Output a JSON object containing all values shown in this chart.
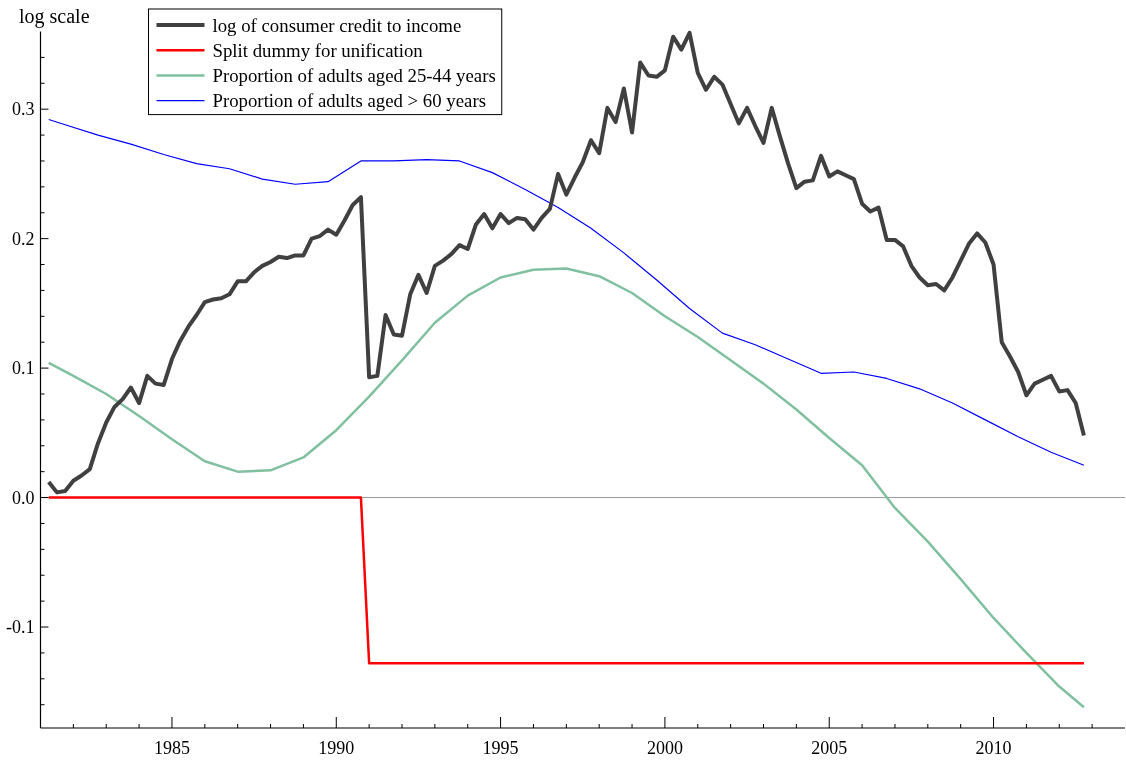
{
  "chart_data": {
    "type": "line",
    "ylabel": "log scale",
    "xlim": [
      1981,
      2014
    ],
    "ylim": [
      -0.178,
      0.36
    ],
    "xticks": [
      {
        "value": 1982,
        "label": null
      },
      {
        "value": 1983,
        "label": null
      },
      {
        "value": 1984,
        "label": null
      },
      1985,
      {
        "value": 1986,
        "label": null
      },
      {
        "value": 1987,
        "label": null
      },
      {
        "value": 1988,
        "label": null
      },
      {
        "value": 1989,
        "label": null
      },
      1990,
      {
        "value": 1991,
        "label": null
      },
      {
        "value": 1992,
        "label": null
      },
      {
        "value": 1993,
        "label": null
      },
      {
        "value": 1994,
        "label": null
      },
      1995,
      {
        "value": 1996,
        "label": null
      },
      {
        "value": 1997,
        "label": null
      },
      {
        "value": 1998,
        "label": null
      },
      {
        "value": 1999,
        "label": null
      },
      2000,
      {
        "value": 2001,
        "label": null
      },
      {
        "value": 2002,
        "label": null
      },
      {
        "value": 2003,
        "label": null
      },
      {
        "value": 2004,
        "label": null
      },
      2005,
      {
        "value": 2006,
        "label": null
      },
      {
        "value": 2007,
        "label": null
      },
      {
        "value": 2008,
        "label": null
      },
      {
        "value": 2009,
        "label": null
      },
      2010,
      {
        "value": 2011,
        "label": null
      },
      {
        "value": 2012,
        "label": null
      },
      {
        "value": 2013,
        "label": null
      }
    ],
    "yticks": [
      {
        "value": -0.16,
        "label": null
      },
      {
        "value": -0.14,
        "label": null
      },
      {
        "value": -0.12,
        "label": null
      },
      -0.1,
      {
        "value": -0.08,
        "label": null
      },
      {
        "value": -0.06,
        "label": null
      },
      {
        "value": -0.04,
        "label": null
      },
      {
        "value": -0.02,
        "label": null
      },
      {
        "value": 0,
        "label": "0.0"
      },
      {
        "value": 0.02,
        "label": null
      },
      {
        "value": 0.04,
        "label": null
      },
      {
        "value": 0.06,
        "label": null
      },
      {
        "value": 0.08,
        "label": null
      },
      0.1,
      {
        "value": 0.12,
        "label": null
      },
      {
        "value": 0.14,
        "label": null
      },
      {
        "value": 0.16,
        "label": null
      },
      {
        "value": 0.18,
        "label": null
      },
      0.2,
      {
        "value": 0.22,
        "label": null
      },
      {
        "value": 0.24,
        "label": null
      },
      {
        "value": 0.26,
        "label": null
      },
      {
        "value": 0.28,
        "label": null
      },
      0.3,
      {
        "value": 0.32,
        "label": null
      },
      {
        "value": 0.34,
        "label": null
      }
    ],
    "ref_lines": [
      {
        "axis": "y",
        "value": 0,
        "color": "#999999"
      }
    ],
    "legend": "top left",
    "series": [
      {
        "name": "log of consumer credit to income",
        "color": "#404040",
        "x": [
          1981.25,
          1981.5,
          1981.75,
          1982,
          1982.25,
          1982.5,
          1982.75,
          1983,
          1983.25,
          1983.5,
          1983.75,
          1984,
          1984.25,
          1984.5,
          1984.75,
          1985,
          1985.25,
          1985.5,
          1985.75,
          1986,
          1986.25,
          1986.5,
          1986.75,
          1987,
          1987.25,
          1987.5,
          1987.75,
          1988,
          1988.25,
          1988.5,
          1988.75,
          1989,
          1989.25,
          1989.5,
          1989.75,
          1990,
          1990.25,
          1990.5,
          1990.75,
          1991,
          1991.25,
          1991.5,
          1991.75,
          1992,
          1992.25,
          1992.5,
          1992.75,
          1993,
          1993.25,
          1993.5,
          1993.75,
          1994,
          1994.25,
          1994.5,
          1994.75,
          1995,
          1995.25,
          1995.5,
          1995.75,
          1996,
          1996.25,
          1996.5,
          1996.75,
          1997,
          1997.25,
          1997.5,
          1997.75,
          1998,
          1998.25,
          1998.5,
          1998.75,
          1999,
          1999.25,
          1999.5,
          1999.75,
          2000,
          2000.25,
          2000.5,
          2000.75,
          2001,
          2001.25,
          2001.5,
          2001.75,
          2002,
          2002.25,
          2002.5,
          2002.75,
          2003,
          2003.25,
          2003.5,
          2003.75,
          2004,
          2004.25,
          2004.5,
          2004.75,
          2005,
          2005.25,
          2005.5,
          2005.75,
          2006,
          2006.25,
          2006.5,
          2006.75,
          2007,
          2007.25,
          2007.5,
          2007.75,
          2008,
          2008.25,
          2008.5,
          2008.75,
          2009,
          2009.25,
          2009.5,
          2009.75,
          2010,
          2010.25,
          2010.5,
          2010.75,
          2011,
          2011.25,
          2011.5,
          2011.75,
          2012,
          2012.25,
          2012.5,
          2012.75
        ],
        "values": [
          0.012,
          0.004,
          0.005,
          0.013,
          0.017,
          0.022,
          0.042,
          0.058,
          0.07,
          0.076,
          0.085,
          0.073,
          0.094,
          0.088,
          0.087,
          0.107,
          0.121,
          0.132,
          0.141,
          0.151,
          0.153,
          0.154,
          0.157,
          0.167,
          0.167,
          0.174,
          0.179,
          0.182,
          0.186,
          0.185,
          0.187,
          0.187,
          0.2,
          0.202,
          0.207,
          0.203,
          0.214,
          0.226,
          0.232,
          0.093,
          0.094,
          0.141,
          0.126,
          0.125,
          0.157,
          0.172,
          0.158,
          0.179,
          0.183,
          0.188,
          0.195,
          0.192,
          0.211,
          0.219,
          0.208,
          0.219,
          0.212,
          0.216,
          0.215,
          0.207,
          0.216,
          0.223,
          0.25,
          0.234,
          0.247,
          0.259,
          0.276,
          0.266,
          0.301,
          0.29,
          0.316,
          0.282,
          0.336,
          0.326,
          0.325,
          0.33,
          0.356,
          0.346,
          0.359,
          0.328,
          0.315,
          0.325,
          0.319,
          0.304,
          0.289,
          0.301,
          0.287,
          0.274,
          0.301,
          0.279,
          0.258,
          0.239,
          0.244,
          0.245,
          0.264,
          0.248,
          0.252,
          0.249,
          0.246,
          0.227,
          0.221,
          0.224,
          0.199,
          0.199,
          0.194,
          0.179,
          0.17,
          0.164,
          0.165,
          0.16,
          0.17,
          0.183,
          0.196,
          0.204,
          0.197,
          0.18,
          0.12,
          0.109,
          0.097,
          0.079,
          0.088,
          0.091,
          0.094,
          0.082,
          0.083,
          0.073,
          0.048
        ]
      },
      {
        "name": "Split dummy for unification",
        "color": "#ff0000",
        "x": [
          1981.25,
          1990.75,
          1991,
          2012.75
        ],
        "values": [
          0,
          0,
          -0.128,
          -0.128
        ]
      },
      {
        "name": "Proportion of adults aged 25-44 years",
        "color": "#80c0a0",
        "x": [
          1981.25,
          1982,
          1983,
          1984,
          1985,
          1986,
          1987,
          1988,
          1989,
          1990,
          1991,
          1992,
          1993,
          1994,
          1995,
          1996,
          1997,
          1998,
          1999,
          2000,
          2001,
          2002,
          2003,
          2004,
          2005,
          2006,
          2007,
          2008,
          2009,
          2010,
          2011,
          2012,
          2012.75
        ],
        "values": [
          0.104,
          0.094,
          0.08,
          0.063,
          0.045,
          0.028,
          0.02,
          0.021,
          0.031,
          0.052,
          0.078,
          0.106,
          0.135,
          0.156,
          0.17,
          0.176,
          0.177,
          0.171,
          0.158,
          0.14,
          0.124,
          0.106,
          0.088,
          0.068,
          0.046,
          0.025,
          -0.008,
          -0.034,
          -0.063,
          -0.093,
          -0.12,
          -0.146,
          -0.162
        ]
      },
      {
        "name": "Proportion of adults aged > 60 years",
        "color": "#0000ff",
        "x": [
          1981.25,
          1981.75,
          1982.75,
          1983.75,
          1984.75,
          1985.75,
          1986.75,
          1987.75,
          1988.75,
          1989.75,
          1990.75,
          1991.75,
          1992.75,
          1993.75,
          1994.75,
          1995.75,
          1996.75,
          1997.75,
          1998.75,
          1999.75,
          2000.75,
          2001.75,
          2002.75,
          2003.75,
          2004.75,
          2005.75,
          2006.75,
          2007.75,
          2008.75,
          2009.75,
          2010.75,
          2011.75,
          2012.75
        ],
        "values": [
          0.292,
          0.288,
          0.28,
          0.273,
          0.265,
          0.258,
          0.254,
          0.246,
          0.242,
          0.244,
          0.26,
          0.26,
          0.261,
          0.26,
          0.251,
          0.238,
          0.224,
          0.208,
          0.189,
          0.168,
          0.146,
          0.127,
          0.118,
          0.107,
          0.096,
          0.097,
          0.092,
          0.084,
          0.073,
          0.06,
          0.047,
          0.035,
          0.025
        ]
      }
    ]
  }
}
